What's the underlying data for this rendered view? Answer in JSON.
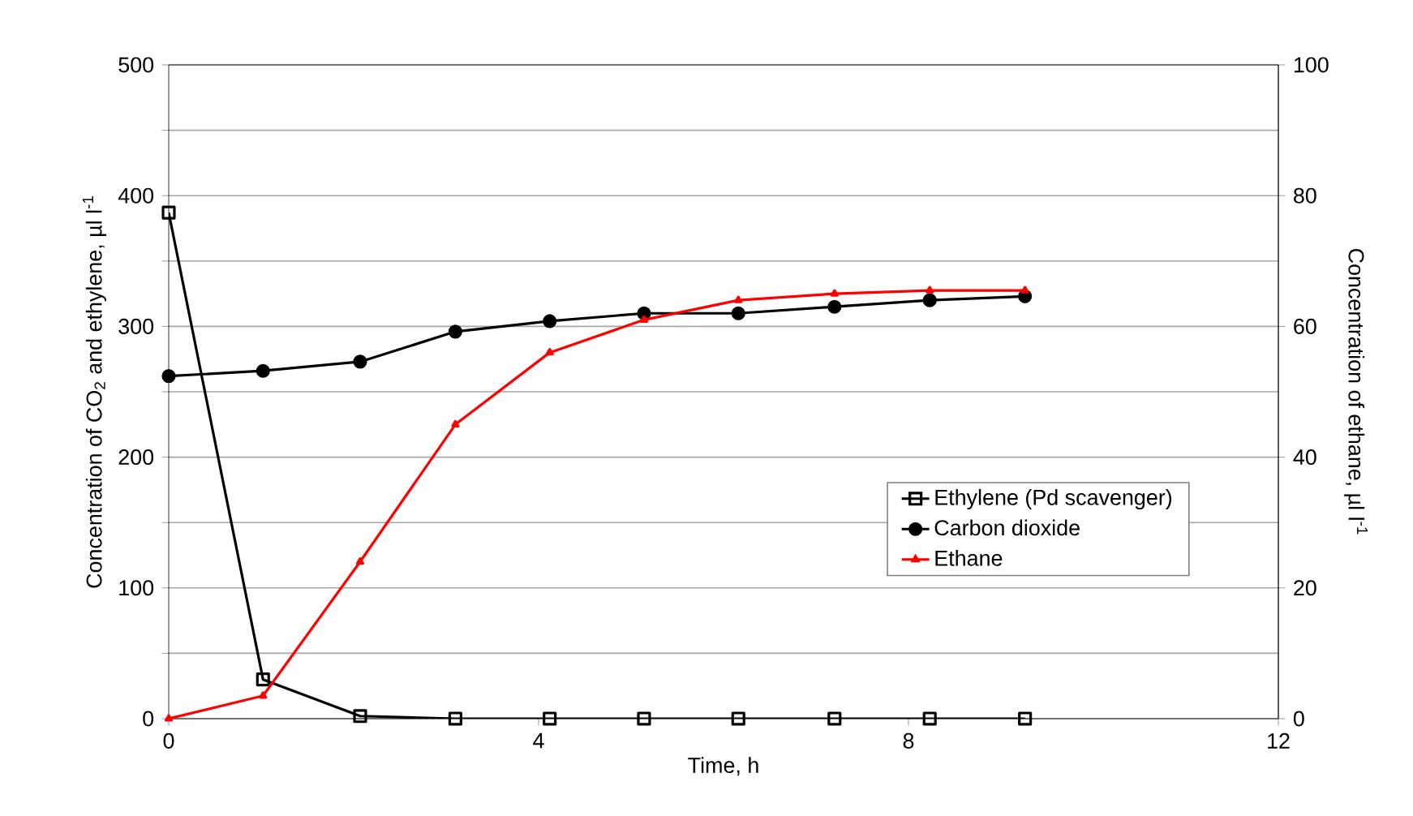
{
  "chart_data": {
    "type": "line",
    "xlabel": "Time, h",
    "ylabel": "Concentration of CO$_{2}$ and ethylene, µl l$^{-1}$",
    "y2label": "Concentration of ethane, µl l$^{-1}$",
    "xlim": [
      0,
      12
    ],
    "xticks": [
      0,
      4,
      8,
      12
    ],
    "ylim": [
      0,
      500
    ],
    "yticks": [
      0,
      {
        "value": 50,
        "label": null
      },
      100,
      {
        "value": 150,
        "label": null
      },
      200,
      {
        "value": 250,
        "label": null
      },
      300,
      {
        "value": 350,
        "label": null
      },
      400,
      {
        "value": 450,
        "label": null
      },
      500
    ],
    "y2lim": [
      0,
      100
    ],
    "y2ticks": [
      0,
      20,
      40,
      60,
      80,
      100
    ],
    "grid": "y",
    "legend": "right",
    "series": [
      {
        "name": "Ethylene (Pd scavenger)",
        "color": "#000000",
        "marker": "square",
        "x": [
          0,
          1.02,
          2.07,
          3.1,
          4.12,
          5.14,
          6.16,
          7.2,
          8.23,
          9.26
        ],
        "values": [
          387,
          30,
          2,
          0,
          0,
          0,
          0,
          0,
          0,
          0
        ]
      },
      {
        "name": "Carbon dioxide",
        "color": "#000000",
        "marker": "circle",
        "x": [
          0,
          1.02,
          2.07,
          3.1,
          4.12,
          5.14,
          6.16,
          7.2,
          8.23,
          9.26
        ],
        "values": [
          262,
          266,
          273,
          296,
          304,
          310,
          310,
          315,
          320,
          323
        ]
      },
      {
        "name": "Ethane",
        "color": "#ff0000",
        "marker": "triangle",
        "axis": "y2",
        "x": [
          0,
          1.02,
          2.07,
          3.1,
          4.12,
          5.14,
          6.16,
          7.2,
          8.23,
          9.26
        ],
        "values": [
          0,
          3.5,
          24,
          45,
          56,
          61,
          64,
          65,
          65.5,
          65.5
        ]
      }
    ]
  }
}
